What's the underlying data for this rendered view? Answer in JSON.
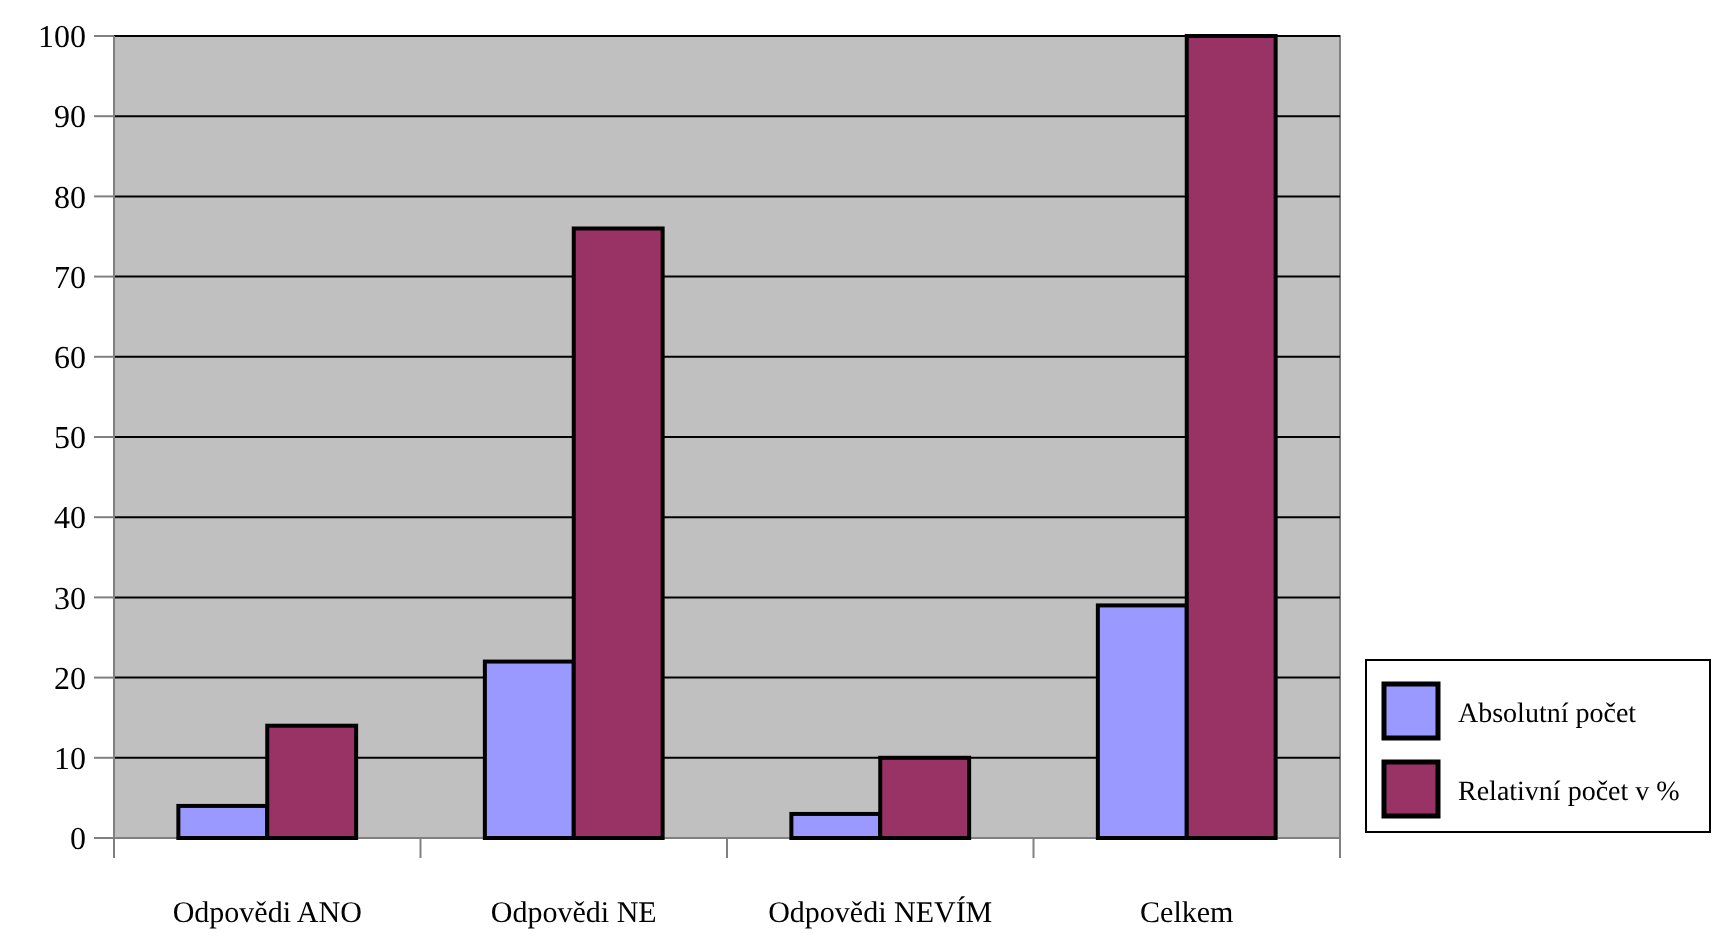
{
  "chart_data": {
    "type": "bar",
    "categories": [
      "Odpovědi ANO",
      "Odpovědi NE",
      "Odpovědi NEVÍM",
      "Celkem"
    ],
    "series": [
      {
        "name": "Absolutní počet",
        "color": "#9999ff",
        "values": [
          4,
          22,
          3,
          29
        ]
      },
      {
        "name": "Relativní počet v %",
        "color": "#993366",
        "values": [
          14,
          76,
          10,
          100
        ]
      }
    ],
    "ylim": [
      0,
      100
    ],
    "yticks": [
      0,
      10,
      20,
      30,
      40,
      50,
      60,
      70,
      80,
      90,
      100
    ],
    "grid": "y",
    "legend": "right"
  }
}
